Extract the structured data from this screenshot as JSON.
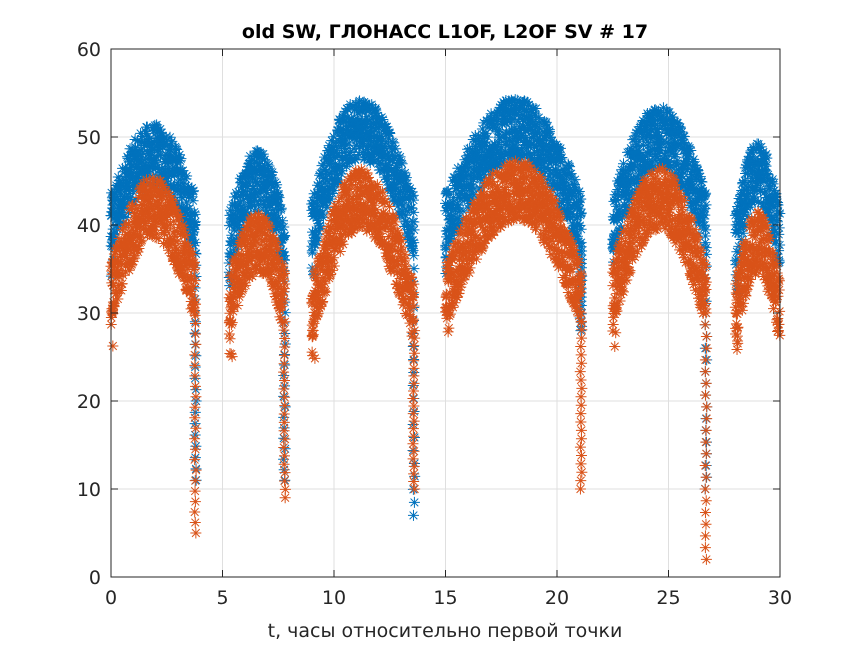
{
  "chart_data": {
    "type": "scatter",
    "title": "old SW, ГЛОНАСС L1OF, L2OF SV # 17",
    "xlabel": "t, часы относительно первой точки",
    "ylabel": "",
    "xlim": [
      0,
      30
    ],
    "ylim": [
      0,
      60
    ],
    "xticks": [
      "0",
      "5",
      "10",
      "15",
      "20",
      "25",
      "30"
    ],
    "yticks": [
      "0",
      "10",
      "20",
      "30",
      "40",
      "50",
      "60"
    ],
    "grid": true,
    "marker": "asterisk",
    "series": [
      {
        "name": "L1OF",
        "color": "#0072BD",
        "passes": [
          {
            "t_start": 0.0,
            "t_peak": 1.9,
            "t_end": 3.8,
            "peak": 48,
            "edge": 40,
            "dip_min": 11
          },
          {
            "t_start": 5.3,
            "t_peak": 6.6,
            "t_end": 7.8,
            "peak": 45,
            "edge": 38,
            "dip_min": 11
          },
          {
            "t_start": 9.0,
            "t_peak": 11.2,
            "t_end": 13.6,
            "peak": 51,
            "edge": 40,
            "dip_min": 7
          },
          {
            "t_start": 15.0,
            "t_peak": 18.2,
            "t_end": 21.1,
            "peak": 51,
            "edge": 40,
            "dip_min": 28
          },
          {
            "t_start": 22.5,
            "t_peak": 24.6,
            "t_end": 26.7,
            "peak": 50,
            "edge": 40,
            "dip_min": 10
          },
          {
            "t_start": 28.0,
            "t_peak": 29.0,
            "t_end": 30.0,
            "peak": 46,
            "edge": 38,
            "dip_min": 38
          }
        ]
      },
      {
        "name": "L2OF",
        "color": "#D95319",
        "passes": [
          {
            "t_start": 0.0,
            "t_peak": 1.9,
            "t_end": 3.8,
            "peak": 42,
            "edge": 32,
            "dip_min": 5
          },
          {
            "t_start": 5.3,
            "t_peak": 6.6,
            "t_end": 7.8,
            "peak": 38,
            "edge": 31,
            "dip_min": 9
          },
          {
            "t_start": 9.0,
            "t_peak": 11.2,
            "t_end": 13.6,
            "peak": 43,
            "edge": 30,
            "dip_min": 10
          },
          {
            "t_start": 15.0,
            "t_peak": 18.2,
            "t_end": 21.1,
            "peak": 44,
            "edge": 32,
            "dip_min": 10
          },
          {
            "t_start": 22.5,
            "t_peak": 24.6,
            "t_end": 26.7,
            "peak": 43,
            "edge": 32,
            "dip_min": 2
          },
          {
            "t_start": 28.0,
            "t_peak": 29.0,
            "t_end": 30.0,
            "peak": 38,
            "edge": 30,
            "dip_min": 29
          }
        ]
      }
    ]
  }
}
